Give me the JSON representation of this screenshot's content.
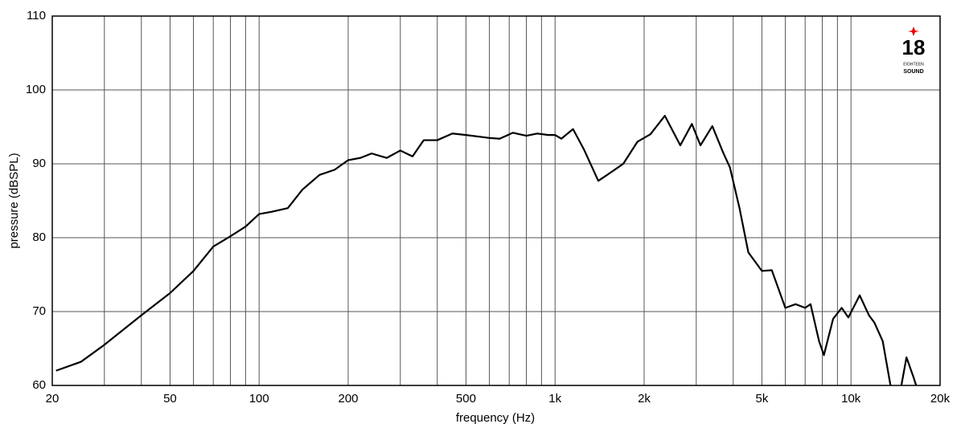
{
  "chart_data": {
    "type": "line",
    "x_label": "frequency (Hz)",
    "y_label": "pressure (dBSPL)",
    "x_scale": "log",
    "grid": true,
    "xlim": [
      20,
      20000
    ],
    "ylim": [
      60,
      110
    ],
    "xticks": [
      20,
      50,
      100,
      200,
      500,
      {
        "value": 1000,
        "label": "1k"
      },
      {
        "value": 2000,
        "label": "2k"
      },
      {
        "value": 5000,
        "label": "5k"
      },
      {
        "value": 10000,
        "label": "10k"
      },
      {
        "value": 20000,
        "label": "20k"
      }
    ],
    "x_minor_grid": [
      30,
      40,
      60,
      70,
      80,
      90,
      300,
      400,
      600,
      700,
      800,
      900,
      3000,
      4000,
      6000,
      7000,
      8000,
      9000
    ],
    "yticks": [
      60,
      70,
      80,
      90,
      100,
      110
    ],
    "logo": {
      "mark": "18",
      "name": "EIGHTEEN",
      "subname": "SOUND"
    },
    "series": [
      {
        "color": "#000000",
        "x": [
          20.6,
          25,
          30,
          40,
          50,
          60,
          70,
          80,
          90,
          100,
          110,
          125,
          140,
          160,
          180,
          200,
          220,
          240,
          270,
          300,
          330,
          360,
          400,
          450,
          500,
          600,
          650,
          720,
          800,
          870,
          950,
          1000,
          1050,
          1150,
          1250,
          1400,
          1500,
          1700,
          1900,
          2100,
          2350,
          2650,
          2900,
          3100,
          3400,
          3700,
          3900,
          4200,
          4500,
          5000,
          5400,
          6000,
          6500,
          7000,
          7300,
          7800,
          8100,
          8700,
          9300,
          9800,
          10700,
          11500,
          12000,
          12800,
          13600,
          14200,
          14800,
          15400,
          16300,
          16600
        ],
        "values": [
          62,
          63.2,
          65.5,
          69.5,
          72.5,
          75.5,
          78.8,
          80.2,
          81.5,
          83.2,
          83.5,
          84,
          86.5,
          88.5,
          89.2,
          90.5,
          90.8,
          91.4,
          90.8,
          91.8,
          91,
          93.2,
          93.2,
          94.1,
          93.9,
          93.5,
          93.4,
          94.2,
          93.8,
          94.1,
          93.9,
          93.9,
          93.4,
          94.7,
          92,
          87.7,
          88.5,
          90,
          93,
          94,
          96.5,
          92.5,
          95.4,
          92.5,
          95.1,
          91.5,
          89.5,
          84,
          78,
          75.5,
          75.6,
          70.5,
          71,
          70.5,
          71,
          66,
          64.1,
          69,
          70.5,
          69.2,
          72.2,
          69.5,
          68.5,
          66,
          60,
          null,
          60,
          63.8,
          61,
          60
        ]
      }
    ]
  }
}
